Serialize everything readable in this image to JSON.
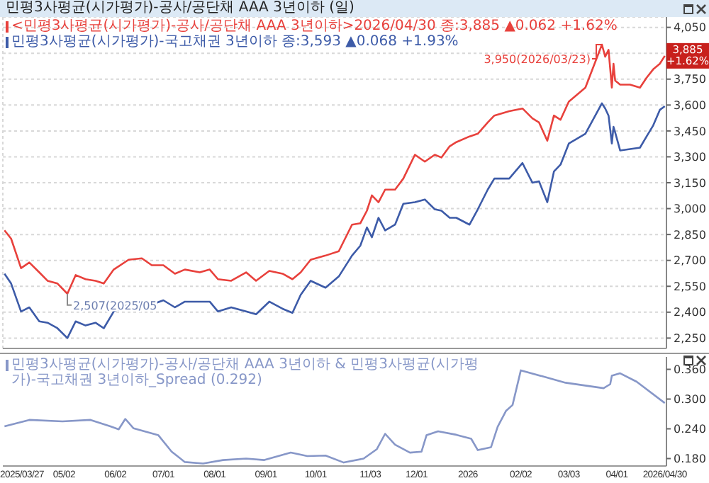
{
  "chart_data": [
    {
      "type": "line",
      "title": "민평3사평균(시가평가)-공사/공단채 AAA 3년이하 (일)",
      "legend": "top left",
      "grid": true,
      "tick_labels": "y",
      "x": [
        "2025-03-27",
        "2025-03-31",
        "2025-04-06",
        "2025-04-11",
        "2025-04-17",
        "2025-04-22",
        "2025-04-28",
        "2025-05-04",
        "2025-05-09",
        "2025-05-15",
        "2025-05-21",
        "2025-05-26",
        "2025-06-01",
        "2025-06-10",
        "2025-06-18",
        "2025-06-24",
        "2025-07-01",
        "2025-07-08",
        "2025-07-14",
        "2025-07-23",
        "2025-07-29",
        "2025-08-03",
        "2025-08-11",
        "2025-08-20",
        "2025-08-26",
        "2025-09-03",
        "2025-09-11",
        "2025-09-17",
        "2025-09-22",
        "2025-09-28",
        "2025-10-07",
        "2025-10-15",
        "2025-10-23",
        "2025-10-28",
        "2025-11-01",
        "2025-11-04",
        "2025-11-08",
        "2025-11-12",
        "2025-11-18",
        "2025-11-23",
        "2025-11-30",
        "2025-12-06",
        "2025-12-12",
        "2025-12-16",
        "2025-12-21",
        "2025-12-25",
        "2026-01-02",
        "2026-01-07",
        "2026-01-13",
        "2026-01-17",
        "2026-01-26",
        "2026-02-03",
        "2026-02-09",
        "2026-02-13",
        "2026-02-18",
        "2026-02-22",
        "2026-02-26",
        "2026-03-03",
        "2026-03-13",
        "2026-03-23",
        "2026-03-25",
        "2026-03-27",
        "2026-03-29",
        "2026-03-30",
        "2026-03-31",
        "2026-04-03",
        "2026-04-09",
        "2026-04-15",
        "2026-04-19",
        "2026-04-23",
        "2026-04-27",
        "2026-04-30"
      ],
      "series": [
        {
          "name": "<민평3사평균(시가평가)-공사/공단채 AAA 3년이하>2026/04/30 종:3,885 ▲0.062 +1.62%",
          "color": "#e8413c",
          "values": [
            2874,
            2826,
            2655,
            2688,
            2631,
            2582,
            2566,
            2507,
            2615,
            2591,
            2582,
            2566,
            2647,
            2704,
            2712,
            2672,
            2672,
            2623,
            2647,
            2631,
            2647,
            2591,
            2582,
            2631,
            2582,
            2639,
            2623,
            2591,
            2631,
            2704,
            2728,
            2753,
            2907,
            2915,
            2988,
            3077,
            3037,
            3110,
            3110,
            3174,
            3312,
            3272,
            3312,
            3296,
            3361,
            3385,
            3418,
            3434,
            3499,
            3539,
            3564,
            3580,
            3523,
            3499,
            3393,
            3539,
            3515,
            3620,
            3701,
            3950,
            3880,
            3920,
            3701,
            3839,
            3742,
            3718,
            3718,
            3701,
            3758,
            3807,
            3839,
            3885
          ]
        },
        {
          "name": "민평3사평균(시가평가)-국고채권 3년이하 종:3,593 ▲0.068 +1.93%",
          "color": "#3d5ba8",
          "values": [
            2623,
            2566,
            2404,
            2428,
            2347,
            2339,
            2307,
            2250,
            2347,
            2323,
            2339,
            2307,
            2404,
            2444,
            2461,
            2444,
            2469,
            2428,
            2461,
            2461,
            2461,
            2404,
            2428,
            2404,
            2388,
            2461,
            2420,
            2396,
            2501,
            2582,
            2542,
            2607,
            2728,
            2785,
            2891,
            2834,
            2947,
            2874,
            2907,
            3028,
            3037,
            3053,
            2996,
            2988,
            2947,
            2947,
            2907,
            2996,
            3110,
            3174,
            3174,
            3264,
            3150,
            3158,
            3037,
            3215,
            3255,
            3377,
            3434,
            3610,
            3580,
            3539,
            3377,
            3474,
            3442,
            3337,
            3345,
            3353,
            3418,
            3482,
            3572,
            3593
          ]
        }
      ],
      "xlim": [
        "2025-03-26",
        "2026-05-01"
      ],
      "xticks": [
        {
          "value": "2025-03-27",
          "label": null
        },
        {
          "value": "2025-05-02",
          "label": null
        },
        {
          "value": "2025-06-02",
          "label": null
        },
        {
          "value": "2025-07-01",
          "label": null
        },
        {
          "value": "2025-08-01",
          "label": null
        },
        {
          "value": "2025-09-01",
          "label": null
        },
        {
          "value": "2025-10-01",
          "label": null
        },
        {
          "value": "2025-11-03",
          "label": null
        },
        {
          "value": "2025-12-01",
          "label": null
        },
        {
          "value": "2026-01-01",
          "label": null
        },
        {
          "value": "2026-02-02",
          "label": null
        },
        {
          "value": "2026-03-03",
          "label": null
        },
        {
          "value": "2026-04-01",
          "label": null
        },
        {
          "value": "2026-04-30",
          "label": null
        }
      ],
      "ylim": [
        2190,
        4110
      ],
      "yticks": [
        {
          "value": 2250,
          "label": "2,250"
        },
        {
          "value": 2400,
          "label": "2,400"
        },
        {
          "value": 2550,
          "label": "2,550"
        },
        {
          "value": 2700,
          "label": "2,700"
        },
        {
          "value": 2850,
          "label": "2,850"
        },
        {
          "value": 3000,
          "label": "3,000"
        },
        {
          "value": 3150,
          "label": "3,150"
        },
        {
          "value": 3300,
          "label": "3,300"
        },
        {
          "value": 3450,
          "label": "3,450"
        },
        {
          "value": 3600,
          "label": "3,600"
        },
        {
          "value": 3750,
          "label": "3,750"
        },
        {
          "value": 3900,
          "label": null
        },
        {
          "value": 4050,
          "label": "4,050"
        }
      ],
      "annotations": [
        {
          "text": "3,950(2026/03/23)",
          "x": "2026-03-23",
          "y": 3950
        },
        {
          "text": "2,507(2025/05",
          "x": "2025-05-04",
          "y": 2507
        },
        {
          "text": "3,885 +1.62%",
          "x": "2026-04-30",
          "y": 3885
        }
      ]
    },
    {
      "type": "line",
      "legend": "top left",
      "series": [
        {
          "name": "민평3사평균(시가평가)-공사/공단채 AAA 3년이하 & 민평3사평균(시가평가)-국고채권 3년이하_Spread (0.292)",
          "color": "#8797c8",
          "x": [
            "2025-03-27",
            "2025-04-11",
            "2025-05-01",
            "2025-05-18",
            "2025-05-30",
            "2025-06-04",
            "2025-06-08",
            "2025-06-13",
            "2025-06-28",
            "2025-07-06",
            "2025-07-14",
            "2025-07-25",
            "2025-08-06",
            "2025-08-20",
            "2025-08-31",
            "2025-09-16",
            "2025-09-26",
            "2025-10-07",
            "2025-10-18",
            "2025-10-30",
            "2025-11-07",
            "2025-11-12",
            "2025-11-18",
            "2025-11-27",
            "2025-12-04",
            "2025-12-07",
            "2025-12-14",
            "2025-12-25",
            "2026-01-03",
            "2026-01-07",
            "2026-01-15",
            "2026-01-19",
            "2026-01-24",
            "2026-01-28",
            "2026-02-02",
            "2026-02-15",
            "2026-03-01",
            "2026-03-24",
            "2026-03-28",
            "2026-03-29",
            "2026-04-03",
            "2026-04-13",
            "2026-04-30"
          ],
          "values": [
            0.245,
            0.258,
            0.255,
            0.258,
            0.245,
            0.239,
            0.26,
            0.241,
            0.227,
            0.194,
            0.173,
            0.17,
            0.177,
            0.18,
            0.177,
            0.192,
            0.185,
            0.186,
            0.172,
            0.18,
            0.199,
            0.23,
            0.208,
            0.192,
            0.194,
            0.227,
            0.235,
            0.228,
            0.22,
            0.197,
            0.203,
            0.244,
            0.276,
            0.288,
            0.358,
            0.346,
            0.333,
            0.322,
            0.33,
            0.347,
            0.352,
            0.335,
            0.292
          ]
        }
      ],
      "xlim": [
        "2025-03-26",
        "2026-05-01"
      ],
      "xticks": [
        {
          "value": "2025-03-27",
          "label": "2025/03/27"
        },
        {
          "value": "2025-05-02",
          "label": "05/02"
        },
        {
          "value": "2025-06-02",
          "label": "06/02"
        },
        {
          "value": "2025-07-01",
          "label": "07/01"
        },
        {
          "value": "2025-08-01",
          "label": "08/01"
        },
        {
          "value": "2025-09-01",
          "label": "09/01"
        },
        {
          "value": "2025-10-01",
          "label": "10/01"
        },
        {
          "value": "2025-11-03",
          "label": "11/03"
        },
        {
          "value": "2025-12-01",
          "label": "12/01"
        },
        {
          "value": "2026-01-01",
          "label": "2026"
        },
        {
          "value": "2026-02-02",
          "label": "02/02"
        },
        {
          "value": "2026-03-03",
          "label": "03/03"
        },
        {
          "value": "2026-04-01",
          "label": "04/01"
        },
        {
          "value": "2026-04-30",
          "label": "2026/04/30"
        }
      ],
      "ylim": [
        0.165,
        0.385
      ],
      "yticks": [
        {
          "value": 0.18,
          "label": "0.180"
        },
        {
          "value": 0.24,
          "label": "0.240"
        },
        {
          "value": 0.3,
          "label": "0.300"
        },
        {
          "value": 0.36,
          "label": "0.360"
        }
      ]
    }
  ]
}
